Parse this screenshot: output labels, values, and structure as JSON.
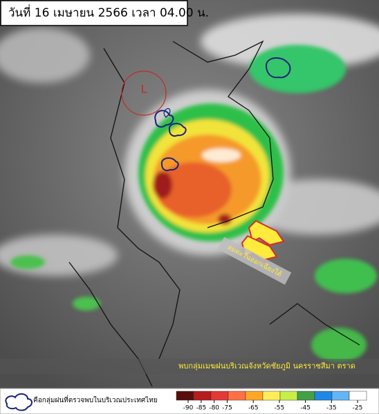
{
  "header": {
    "title": "วันที่ 16 เมษายน 2566 เวลา 04.00 น."
  },
  "map": {
    "low_label": "L",
    "wind_label": "ลมตะวันออกเฉียงใต้",
    "caption": "พบกลุ่มเมฆฝนบริเวณจังหวัดชัยภูมิ นครราชสีมา ตราด"
  },
  "legend": {
    "text": "คือกลุ่มฝนที่ตรวจพบในบริเวณประเทศไทย",
    "ticks": [
      -90,
      -85,
      -80,
      -75,
      -65,
      -55,
      -45,
      -35,
      -25
    ]
  }
}
